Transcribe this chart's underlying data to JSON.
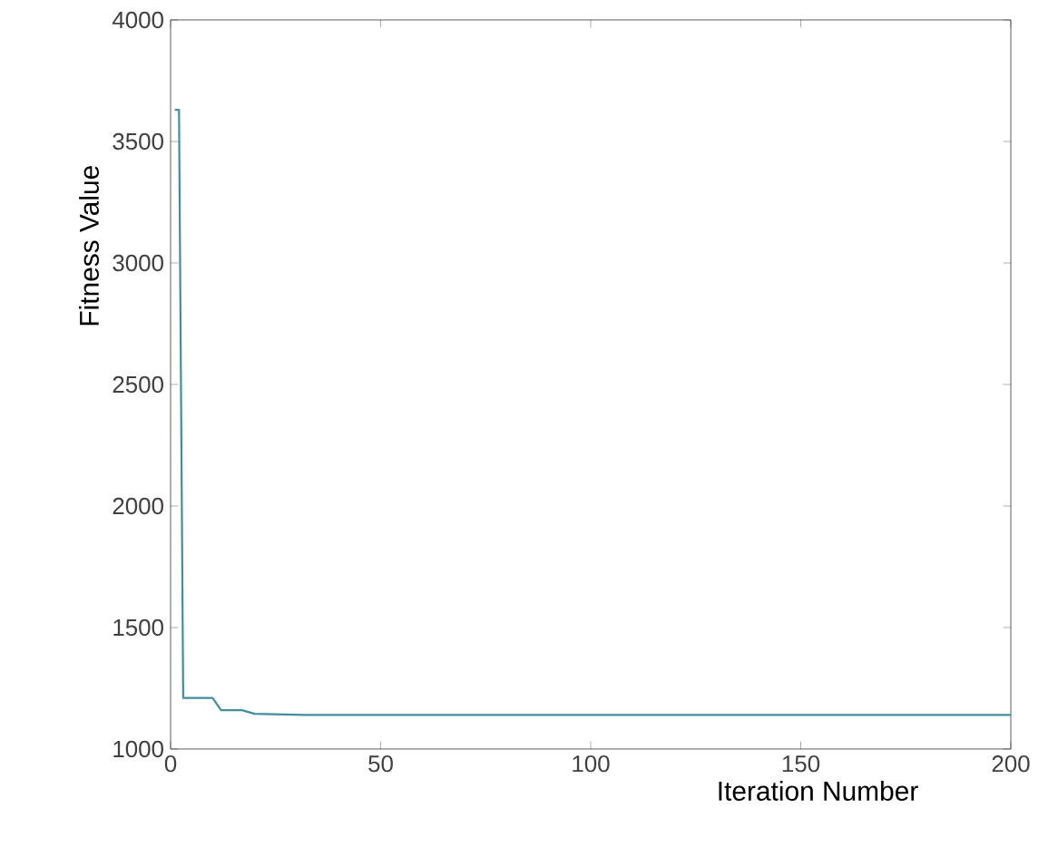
{
  "chart_data": {
    "type": "line",
    "xlabel": "Iteration Number",
    "ylabel": "Fitness Value",
    "x": [
      1,
      2,
      3,
      10,
      12,
      17,
      20,
      32,
      200
    ],
    "series": [
      {
        "color": "#3f8f9c",
        "values": [
          3630,
          3630,
          1210,
          1210,
          1160,
          1160,
          1145,
          1140,
          1140
        ]
      }
    ],
    "xlim": [
      0,
      200
    ],
    "ylim": [
      1000,
      4000
    ],
    "xticks": [
      0,
      50,
      100,
      150,
      200
    ],
    "yticks": [
      1000,
      1500,
      2000,
      2500,
      3000,
      3500,
      4000
    ],
    "grid": false,
    "marker": "none",
    "line_style": "solid"
  }
}
